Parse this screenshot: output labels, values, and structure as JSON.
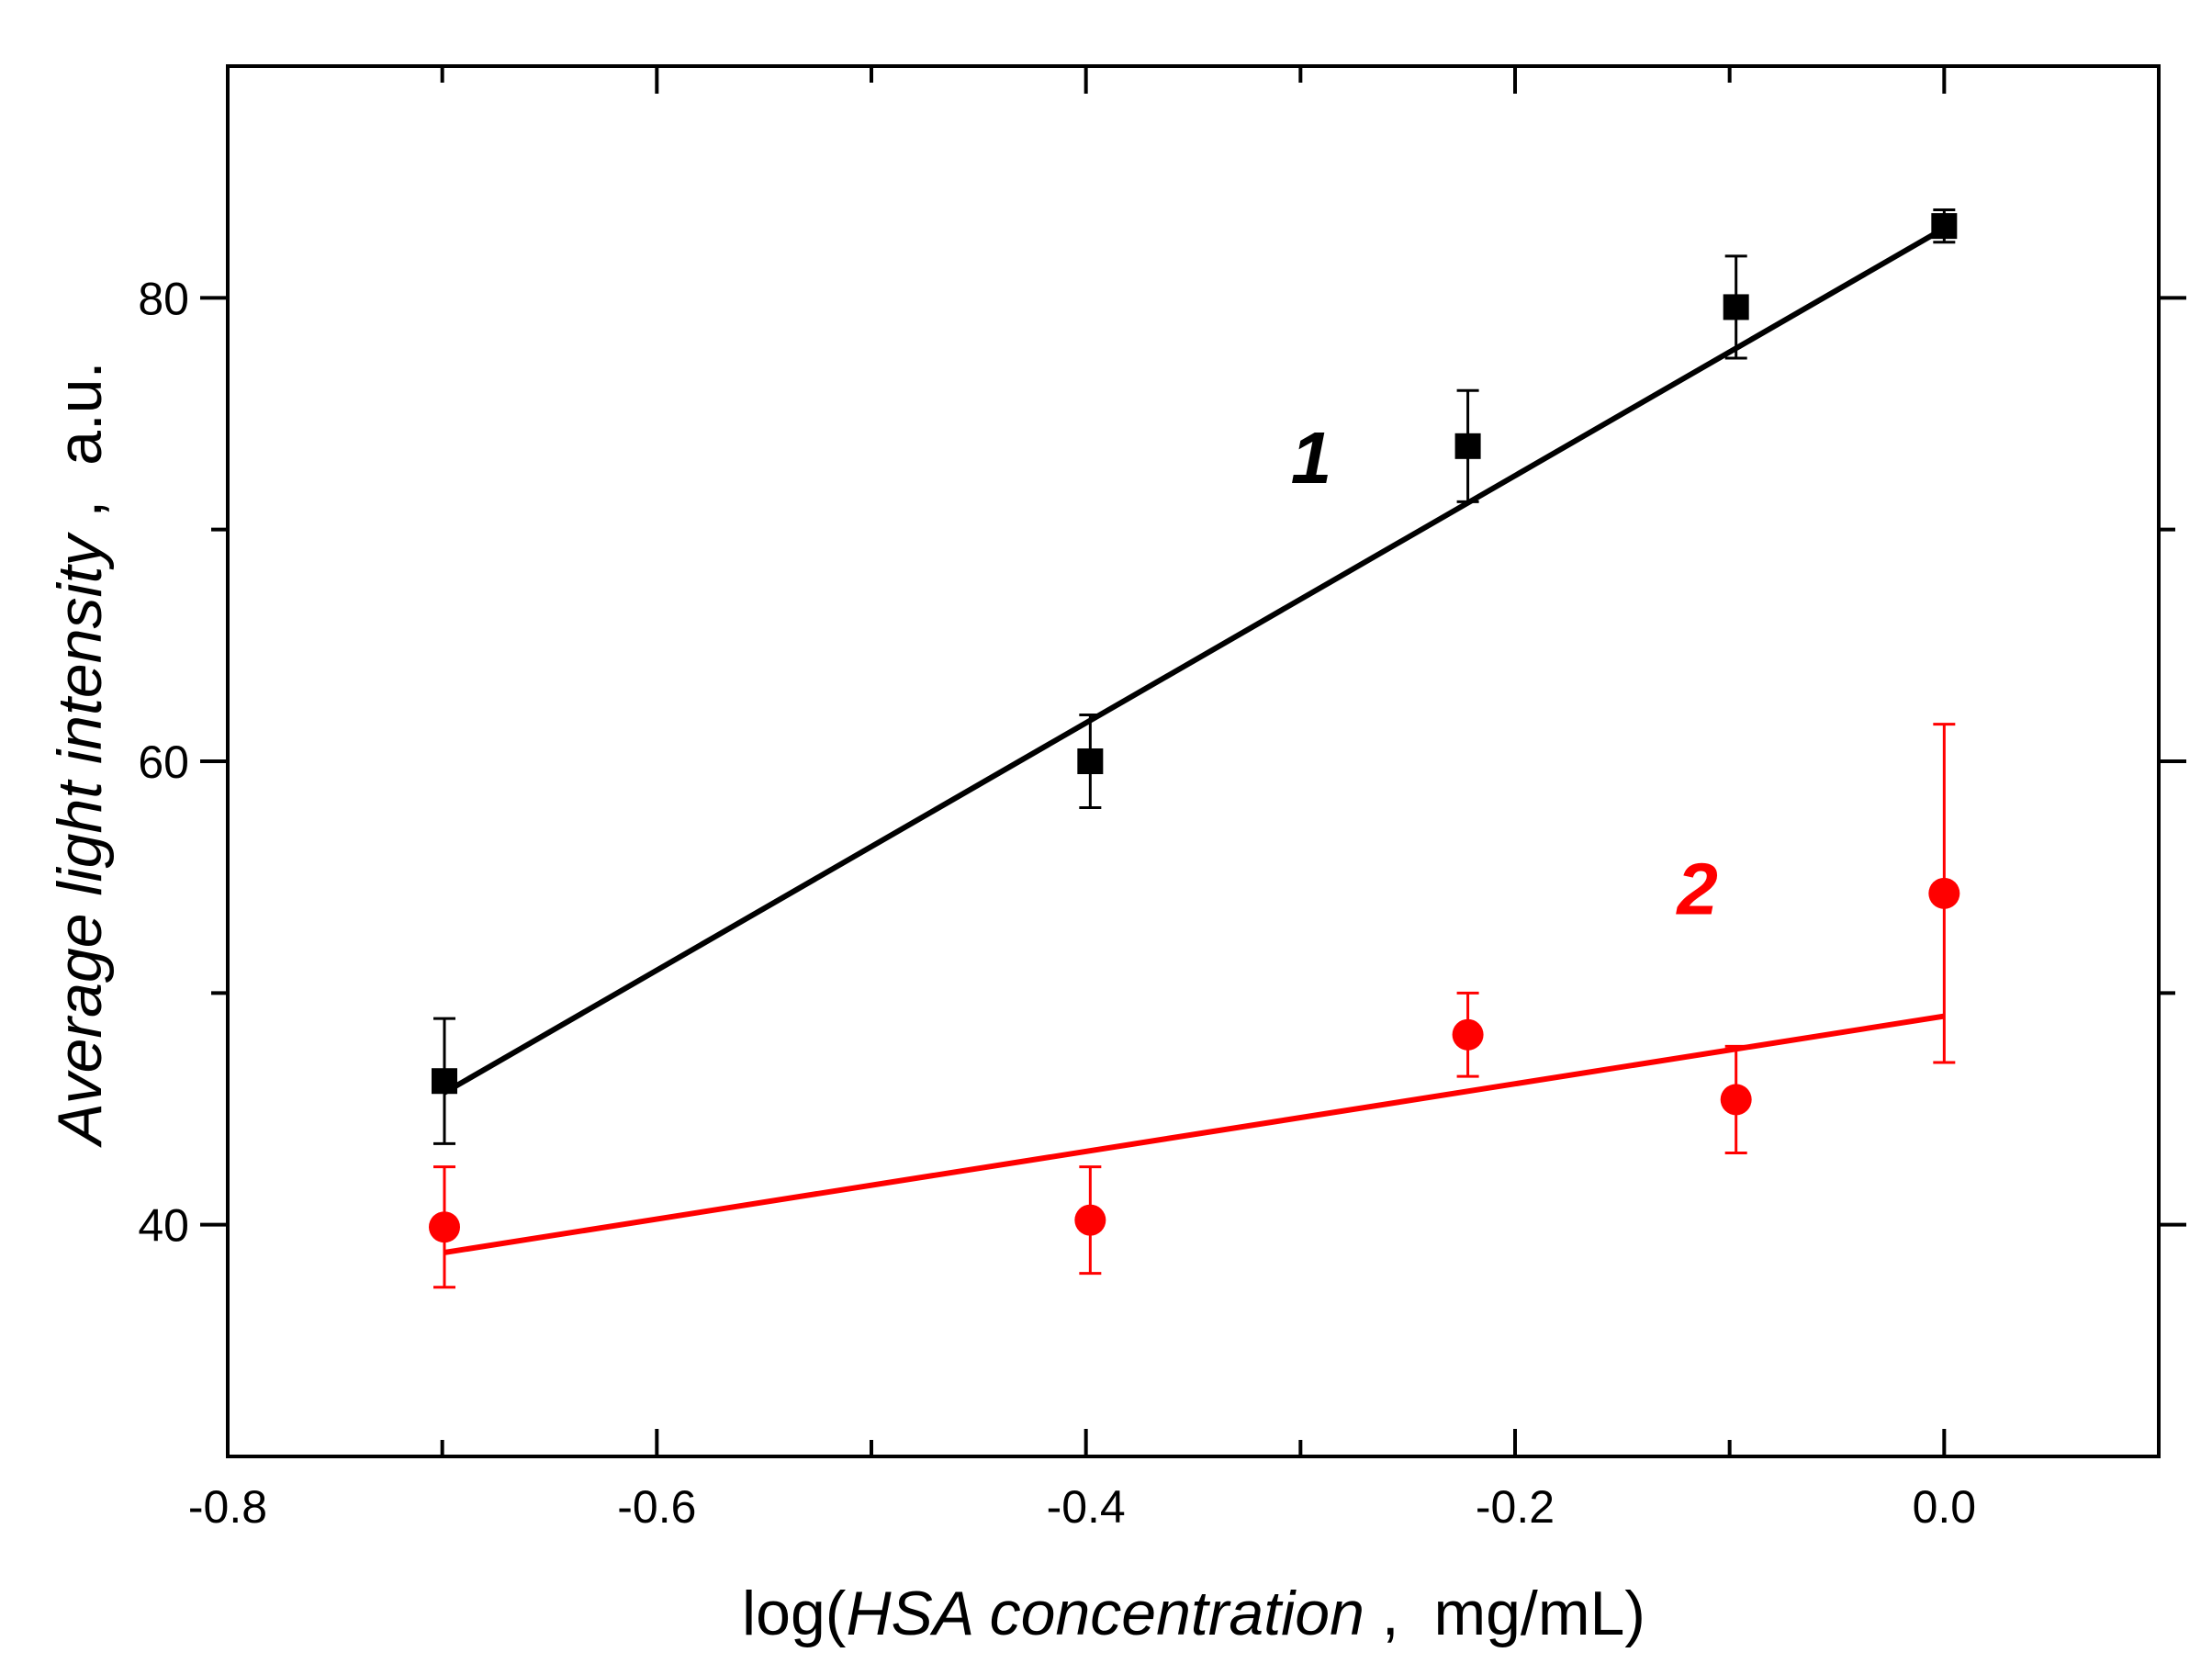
{
  "chart_data": {
    "type": "scatter",
    "title": "",
    "xlabel": {
      "prefix": "log(",
      "italic": "HSA concentration",
      "suffix": " ,  mg/mL)"
    },
    "ylabel": {
      "italic": "Average light intensity",
      "suffix": " ,  a.u."
    },
    "xlim": [
      -0.8,
      0.1
    ],
    "ylim": [
      30,
      90
    ],
    "xticks_major": [
      -0.8,
      -0.6,
      -0.4,
      -0.2,
      0.0
    ],
    "xtick_labels": [
      "-0.8",
      "-0.6",
      "-0.4",
      "-0.2",
      "0.0"
    ],
    "xticks_minor": [
      -0.7,
      -0.5,
      -0.3,
      -0.1
    ],
    "yticks_major": [
      40,
      60,
      80
    ],
    "ytick_labels": [
      "40",
      "60",
      "80"
    ],
    "yticks_minor": [
      50,
      70
    ],
    "grid": false,
    "series": [
      {
        "name": "1",
        "label": "1",
        "color": "#000000",
        "marker": "square",
        "x": [
          -0.699,
          -0.398,
          -0.222,
          -0.097,
          0.0
        ],
        "y": [
          46.2,
          60.0,
          73.6,
          79.6,
          83.1
        ],
        "yerr": [
          2.7,
          2.0,
          2.4,
          2.2,
          0.7
        ],
        "fit": {
          "x": [
            -0.699,
            0.0
          ],
          "y": [
            45.7,
            83.0
          ]
        },
        "label_pos": {
          "x": -0.295,
          "y": 72.0
        }
      },
      {
        "name": "2",
        "label": "2",
        "color": "#ff0000",
        "marker": "circle",
        "x": [
          -0.699,
          -0.398,
          -0.222,
          -0.097,
          0.0
        ],
        "y": [
          39.9,
          40.2,
          48.2,
          45.4,
          54.3
        ],
        "yerr": [
          2.6,
          2.3,
          1.8,
          2.3,
          7.3
        ],
        "fit": {
          "x": [
            -0.699,
            0.0
          ],
          "y": [
            38.8,
            49.0
          ]
        },
        "label_pos": {
          "x": -0.115,
          "y": 53.4
        }
      }
    ]
  }
}
